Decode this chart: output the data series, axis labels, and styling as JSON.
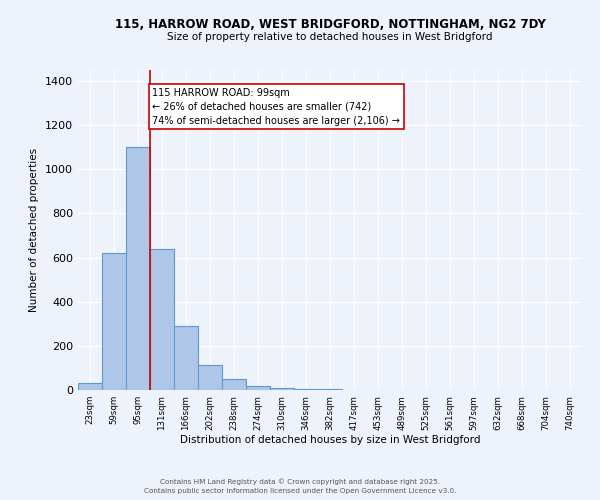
{
  "title1": "115, HARROW ROAD, WEST BRIDGFORD, NOTTINGHAM, NG2 7DY",
  "title2": "Size of property relative to detached houses in West Bridgford",
  "xlabel": "Distribution of detached houses by size in West Bridgford",
  "ylabel": "Number of detached properties",
  "bin_labels": [
    "23sqm",
    "59sqm",
    "95sqm",
    "131sqm",
    "166sqm",
    "202sqm",
    "238sqm",
    "274sqm",
    "310sqm",
    "346sqm",
    "382sqm",
    "417sqm",
    "453sqm",
    "489sqm",
    "525sqm",
    "561sqm",
    "597sqm",
    "632sqm",
    "668sqm",
    "704sqm",
    "740sqm"
  ],
  "bar_heights": [
    30,
    620,
    1100,
    640,
    290,
    115,
    50,
    20,
    10,
    5,
    5,
    0,
    0,
    0,
    0,
    0,
    0,
    0,
    0,
    0,
    0
  ],
  "bar_color": "#aec6e8",
  "bar_edge_color": "#5b9bd5",
  "property_size_idx": 2,
  "vline_color": "#cc0000",
  "annotation_line1": "115 HARROW ROAD: 99sqm",
  "annotation_line2": "← 26% of detached houses are smaller (742)",
  "annotation_line3": "74% of semi-detached houses are larger (2,106) →",
  "annotation_box_color": "#ffffff",
  "annotation_box_edge": "#cc0000",
  "ylim": [
    0,
    1450
  ],
  "yticks": [
    0,
    200,
    400,
    600,
    800,
    1000,
    1200,
    1400
  ],
  "background_color": "#eef2fb",
  "grid_color": "#ffffff",
  "footer1": "Contains HM Land Registry data © Crown copyright and database right 2025.",
  "footer2": "Contains public sector information licensed under the Open Government Licence v3.0."
}
